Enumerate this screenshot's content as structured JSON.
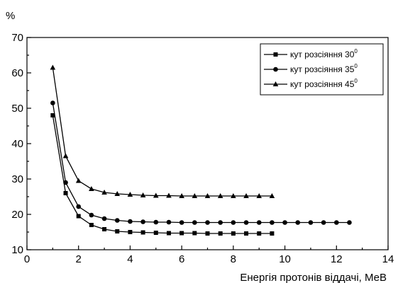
{
  "chart_data": {
    "type": "line",
    "title": "",
    "xlabel": "Енергія протонів віддачі, МеВ",
    "ylabel": "%",
    "xlim": [
      0,
      14
    ],
    "ylim": [
      10,
      70
    ],
    "xticks": [
      0,
      2,
      4,
      6,
      8,
      10,
      12,
      14
    ],
    "yticks": [
      10,
      20,
      30,
      40,
      50,
      60,
      70
    ],
    "legend_position": "top-right",
    "grid": false,
    "series": [
      {
        "name": "кут розсіяння 30",
        "name_sup": "0",
        "marker": "square",
        "x": [
          1,
          1.5,
          2,
          2.5,
          3,
          3.5,
          4,
          4.5,
          5,
          5.5,
          6,
          6.5,
          7,
          7.5,
          8,
          8.5,
          9,
          9.5
        ],
        "y": [
          48,
          26,
          19.5,
          17,
          15.8,
          15.2,
          15,
          14.9,
          14.8,
          14.7,
          14.7,
          14.7,
          14.6,
          14.6,
          14.6,
          14.6,
          14.6,
          14.6
        ]
      },
      {
        "name": "кут розсіяння 35",
        "name_sup": "0",
        "marker": "circle",
        "x": [
          1,
          1.5,
          2,
          2.5,
          3,
          3.5,
          4,
          4.5,
          5,
          5.5,
          6,
          6.5,
          7,
          7.5,
          8,
          8.5,
          9,
          9.5,
          10,
          10.5,
          11,
          11.5,
          12,
          12.5
        ],
        "y": [
          51.5,
          29,
          22.2,
          19.8,
          18.8,
          18.3,
          18,
          17.9,
          17.8,
          17.8,
          17.7,
          17.7,
          17.7,
          17.7,
          17.7,
          17.7,
          17.7,
          17.7,
          17.7,
          17.7,
          17.7,
          17.7,
          17.7,
          17.7
        ]
      },
      {
        "name": "кут розсіяння 45",
        "name_sup": "0",
        "marker": "triangle",
        "x": [
          1,
          1.5,
          2,
          2.5,
          3,
          3.5,
          4,
          4.5,
          5,
          5.5,
          6,
          6.5,
          7,
          7.5,
          8,
          8.5,
          9,
          9.5
        ],
        "y": [
          61.5,
          36.5,
          29.5,
          27.2,
          26.2,
          25.8,
          25.6,
          25.4,
          25.3,
          25.3,
          25.2,
          25.2,
          25.2,
          25.2,
          25.2,
          25.2,
          25.2,
          25.2
        ]
      }
    ]
  }
}
